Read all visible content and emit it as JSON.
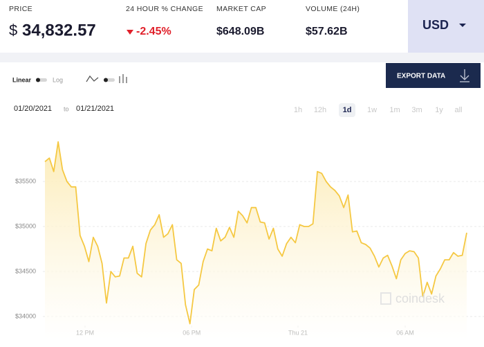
{
  "header": {
    "price_label": "PRICE",
    "currency_symbol": "$",
    "price": "34,832.57",
    "change_label": "24 HOUR % CHANGE",
    "change": "-2.45%",
    "market_cap_label": "MARKET CAP",
    "market_cap": "$648.09B",
    "volume_label": "VOLUME (24H)",
    "volume": "$57.62B",
    "currency": "USD"
  },
  "controls": {
    "linear": "Linear",
    "log": "Log",
    "export": "EXPORT DATA",
    "date_from": "01/20/2021",
    "date_sep": "to",
    "date_to": "01/21/2021",
    "ranges": [
      "1h",
      "12h",
      "1d",
      "1w",
      "1m",
      "3m",
      "1y",
      "all"
    ],
    "active_range": 2
  },
  "watermark": "coindesk",
  "chart_data": {
    "type": "line",
    "color": "#f5c842",
    "grid": true,
    "values": [
      35720,
      35760,
      35610,
      35940,
      35630,
      35500,
      35440,
      35440,
      34900,
      34780,
      34610,
      34880,
      34780,
      34590,
      34150,
      34500,
      34440,
      34450,
      34650,
      34650,
      34780,
      34480,
      34440,
      34810,
      34960,
      35020,
      35130,
      34880,
      34920,
      35020,
      34630,
      34590,
      34130,
      33920,
      34300,
      34350,
      34610,
      34750,
      34730,
      34980,
      34840,
      34880,
      34990,
      34880,
      35170,
      35120,
      35040,
      35210,
      35210,
      35050,
      35040,
      34860,
      34980,
      34750,
      34670,
      34810,
      34880,
      34820,
      35020,
      35000,
      35000,
      35030,
      35610,
      35590,
      35500,
      35440,
      35400,
      35340,
      35210,
      35350,
      34940,
      34950,
      34820,
      34800,
      34760,
      34670,
      34550,
      34650,
      34680,
      34560,
      34420,
      34630,
      34700,
      34730,
      34720,
      34650,
      34220,
      34380,
      34250,
      34450,
      34530,
      34630,
      34630,
      34710,
      34670,
      34680,
      34930
    ],
    "xlim": [
      0,
      96
    ],
    "xticks": [
      {
        "value": 9.13,
        "label": "12 PM"
      },
      {
        "value": 33.4,
        "label": "06 PM"
      },
      {
        "value": 57.6,
        "label": "Thu 21"
      },
      {
        "value": 82.0,
        "label": "06 AM"
      }
    ],
    "ylim": [
      33900,
      36100
    ],
    "yticks": [
      {
        "value": 34000,
        "label": "$34000"
      },
      {
        "value": 34500,
        "label": "$34500"
      },
      {
        "value": 35000,
        "label": "$35000"
      },
      {
        "value": 35500,
        "label": "$35500"
      }
    ]
  }
}
